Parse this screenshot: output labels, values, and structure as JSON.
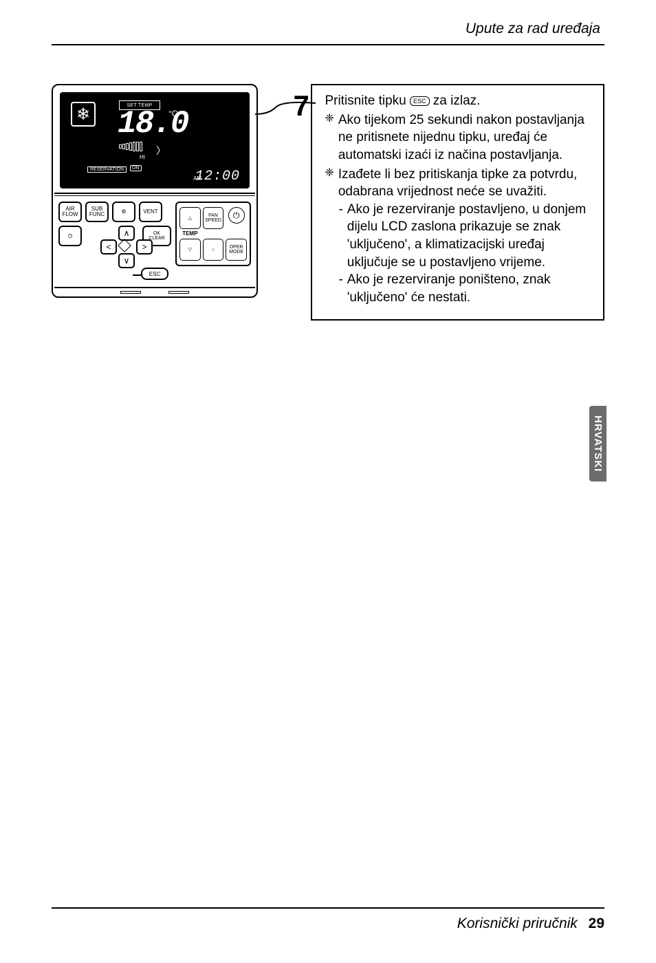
{
  "header": {
    "title": "Upute za rad uređaja"
  },
  "sidetab": "HRVATSKI",
  "footer": {
    "label": "Korisnički priručnik",
    "page": "29"
  },
  "device": {
    "set_temp_label": "SET TEMP",
    "temp_value": "18.0",
    "temp_unit": "°C",
    "fan_level_label": "HI",
    "reservation_label": "RESERVATION",
    "on_label": "ON",
    "ampm": "AM",
    "clock": "12:00",
    "buttons": {
      "air_flow": "AIR\nFLOW",
      "sub_func": "SUB\nFUNC",
      "settings": "⚙",
      "vent": "VENT",
      "timer": "◷",
      "ok_clear": "OK\nCLEAR",
      "esc": "ESC"
    },
    "nav": {
      "up": "∧",
      "down": "∨",
      "left": "<",
      "right": ">"
    },
    "right_panel": {
      "temp_up": "△",
      "fan_speed": "FAN\nSPEED",
      "power": "⏻",
      "temp_label": "TEMP",
      "temp_down": "▽",
      "hold": "○",
      "oper_mode": "OPER\nMODE"
    }
  },
  "step": {
    "number": "7",
    "main_a": "Pritisnite tipku",
    "main_esc": "ESC",
    "main_b": "za izlaz.",
    "bullets": [
      "Ako tijekom 25 sekundi nakon postavljanja ne pritisnete nijednu tipku, uređaj će automatski izaći iz načina postavljanja.",
      "Izađete li bez pritiskanja tipke za potvrdu, odabrana vrijednost neće se uvažiti."
    ],
    "subs": [
      "Ako je rezerviranje postavljeno, u donjem dijelu LCD zaslona prikazuje se znak 'uključeno', a klimatizacijski uređaj uključuje se u postavljeno vrijeme.",
      "Ako je rezerviranje poništeno, znak 'uključeno' će nestati."
    ]
  }
}
